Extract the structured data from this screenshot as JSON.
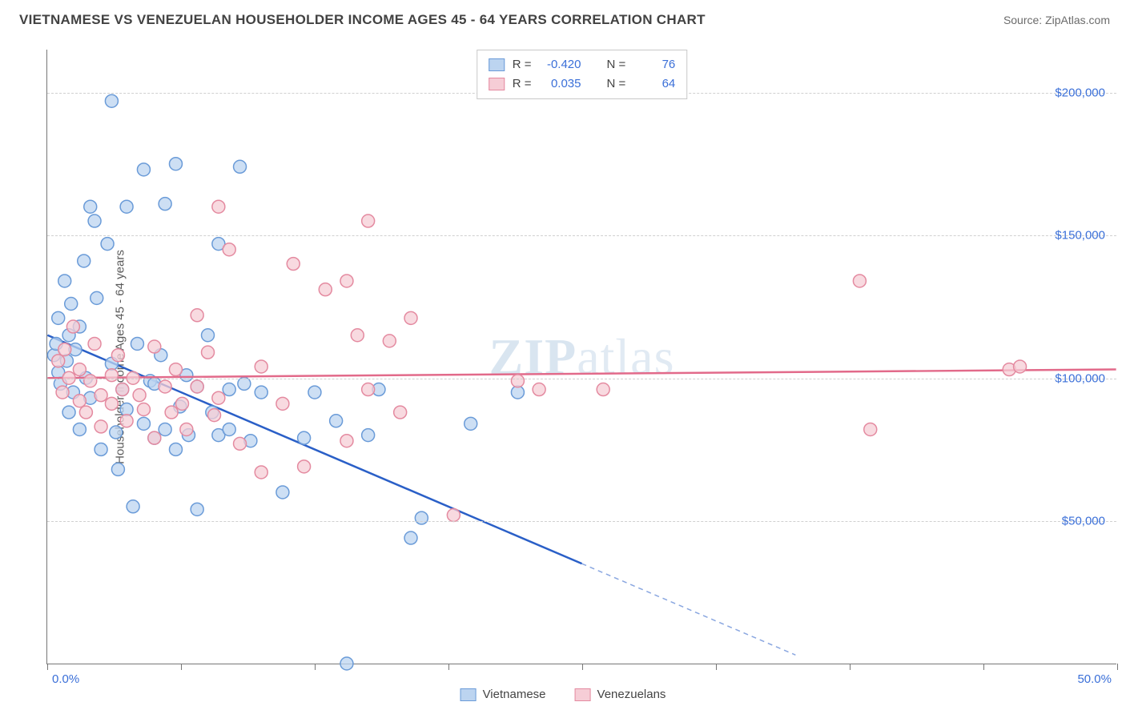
{
  "header": {
    "title": "VIETNAMESE VS VENEZUELAN HOUSEHOLDER INCOME AGES 45 - 64 YEARS CORRELATION CHART",
    "source": "Source: ZipAtlas.com"
  },
  "ylabel": "Householder Income Ages 45 - 64 years",
  "watermark_a": "ZIP",
  "watermark_b": "atlas",
  "chart": {
    "type": "scatter",
    "xlim": [
      0,
      50
    ],
    "ylim": [
      0,
      215000
    ],
    "xtick_positions": [
      0,
      6.25,
      12.5,
      18.75,
      25,
      31.25,
      37.5,
      43.75,
      50
    ],
    "xtick_labels": {
      "first": "0.0%",
      "last": "50.0%"
    },
    "ytick_positions": [
      50000,
      100000,
      150000,
      200000
    ],
    "ytick_labels": [
      "$50,000",
      "$100,000",
      "$150,000",
      "$200,000"
    ],
    "grid_color": "#d0d0d0",
    "background_color": "#ffffff",
    "axis_color": "#777777",
    "marker_radius": 8,
    "marker_stroke_width": 1.5,
    "series": [
      {
        "name": "Vietnamese",
        "fill": "#bcd4f0",
        "stroke": "#6a9bd8",
        "line_color": "#2a5fc7",
        "R": "-0.420",
        "N": "76",
        "trend": {
          "x1": 0,
          "y1": 115000,
          "x2": 25,
          "y2": 35000,
          "dash_after_x": 25,
          "x3": 35,
          "y3": 3000
        },
        "points": [
          [
            0.3,
            108000
          ],
          [
            0.4,
            112000
          ],
          [
            0.5,
            102000
          ],
          [
            0.5,
            121000
          ],
          [
            0.6,
            98000
          ],
          [
            0.8,
            134000
          ],
          [
            0.9,
            106000
          ],
          [
            1.0,
            115000
          ],
          [
            1.0,
            88000
          ],
          [
            1.1,
            126000
          ],
          [
            1.2,
            95000
          ],
          [
            1.3,
            110000
          ],
          [
            1.5,
            118000
          ],
          [
            1.5,
            82000
          ],
          [
            1.7,
            141000
          ],
          [
            1.8,
            100000
          ],
          [
            2.0,
            160000
          ],
          [
            2.0,
            93000
          ],
          [
            2.2,
            155000
          ],
          [
            2.3,
            128000
          ],
          [
            2.5,
            75000
          ],
          [
            2.8,
            147000
          ],
          [
            3.0,
            197000
          ],
          [
            3.0,
            105000
          ],
          [
            3.2,
            81000
          ],
          [
            3.3,
            68000
          ],
          [
            3.5,
            96000
          ],
          [
            3.7,
            89000
          ],
          [
            3.7,
            160000
          ],
          [
            4.0,
            55000
          ],
          [
            4.2,
            112000
          ],
          [
            4.5,
            173000
          ],
          [
            4.5,
            84000
          ],
          [
            4.8,
            99000
          ],
          [
            5.0,
            79000
          ],
          [
            5.0,
            98000
          ],
          [
            5.3,
            108000
          ],
          [
            5.5,
            161000
          ],
          [
            5.5,
            82000
          ],
          [
            6.0,
            175000
          ],
          [
            6.0,
            75000
          ],
          [
            6.2,
            90000
          ],
          [
            6.5,
            101000
          ],
          [
            6.6,
            80000
          ],
          [
            7.0,
            54000
          ],
          [
            7.0,
            97000
          ],
          [
            7.5,
            115000
          ],
          [
            7.7,
            88000
          ],
          [
            8.0,
            147000
          ],
          [
            8.0,
            80000
          ],
          [
            8.5,
            96000
          ],
          [
            8.5,
            82000
          ],
          [
            9.0,
            174000
          ],
          [
            9.2,
            98000
          ],
          [
            9.5,
            78000
          ],
          [
            10.0,
            95000
          ],
          [
            11.0,
            60000
          ],
          [
            12.0,
            79000
          ],
          [
            12.5,
            95000
          ],
          [
            13.5,
            85000
          ],
          [
            14.0,
            0
          ],
          [
            15.0,
            80000
          ],
          [
            15.5,
            96000
          ],
          [
            17.0,
            44000
          ],
          [
            17.5,
            51000
          ],
          [
            19.8,
            84000
          ],
          [
            22.0,
            95000
          ]
        ]
      },
      {
        "name": "Venezuelans",
        "fill": "#f6cdd6",
        "stroke": "#e48aa0",
        "line_color": "#e26a8a",
        "R": "0.035",
        "N": "64",
        "trend": {
          "x1": 0,
          "y1": 100000,
          "x2": 50,
          "y2": 103000
        },
        "points": [
          [
            0.5,
            106000
          ],
          [
            0.7,
            95000
          ],
          [
            0.8,
            110000
          ],
          [
            1.0,
            100000
          ],
          [
            1.2,
            118000
          ],
          [
            1.5,
            92000
          ],
          [
            1.5,
            103000
          ],
          [
            1.8,
            88000
          ],
          [
            2.0,
            99000
          ],
          [
            2.2,
            112000
          ],
          [
            2.5,
            94000
          ],
          [
            2.5,
            83000
          ],
          [
            3.0,
            101000
          ],
          [
            3.0,
            91000
          ],
          [
            3.3,
            108000
          ],
          [
            3.5,
            96000
          ],
          [
            3.7,
            85000
          ],
          [
            4.0,
            100000
          ],
          [
            4.3,
            94000
          ],
          [
            4.5,
            89000
          ],
          [
            5.0,
            79000
          ],
          [
            5.0,
            111000
          ],
          [
            5.5,
            97000
          ],
          [
            5.8,
            88000
          ],
          [
            6.0,
            103000
          ],
          [
            6.3,
            91000
          ],
          [
            6.5,
            82000
          ],
          [
            7.0,
            122000
          ],
          [
            7.0,
            97000
          ],
          [
            7.5,
            109000
          ],
          [
            7.8,
            87000
          ],
          [
            8.0,
            160000
          ],
          [
            8.0,
            93000
          ],
          [
            8.5,
            145000
          ],
          [
            9.0,
            77000
          ],
          [
            10.0,
            104000
          ],
          [
            10.0,
            67000
          ],
          [
            11.0,
            91000
          ],
          [
            11.5,
            140000
          ],
          [
            12.0,
            69000
          ],
          [
            13.0,
            131000
          ],
          [
            14.0,
            78000
          ],
          [
            14.0,
            134000
          ],
          [
            14.5,
            115000
          ],
          [
            15.0,
            155000
          ],
          [
            15.0,
            96000
          ],
          [
            16.0,
            113000
          ],
          [
            16.5,
            88000
          ],
          [
            17.0,
            121000
          ],
          [
            19.0,
            52000
          ],
          [
            22.0,
            99000
          ],
          [
            23.0,
            96000
          ],
          [
            26.0,
            96000
          ],
          [
            38.0,
            134000
          ],
          [
            38.5,
            82000
          ],
          [
            45.0,
            103000
          ],
          [
            45.5,
            104000
          ]
        ]
      }
    ]
  },
  "legend_top": {
    "r_label": "R =",
    "n_label": "N ="
  },
  "legend_bottom": {
    "series1": "Vietnamese",
    "series2": "Venezuelans"
  }
}
